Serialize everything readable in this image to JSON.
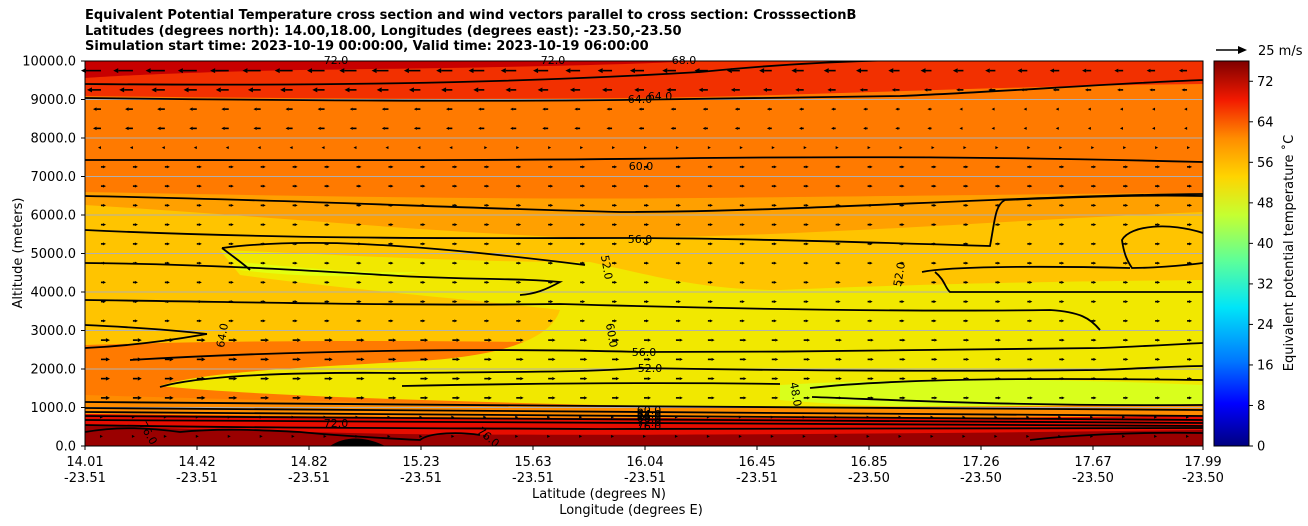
{
  "title_lines": [
    "Equivalent Potential Temperature cross section and wind vectors parallel to cross section: CrosssectionB",
    "Latitudes (degrees north): 14.00,18.00, Longitudes (degrees east): -23.50,-23.50",
    "Simulation start time: 2023-10-19 00:00:00, Valid time: 2023-10-19 06:00:00"
  ],
  "chart_data": {
    "type": "contour-cross-section",
    "ylabel": "Altitude (meters)",
    "xlabel_lat": "Latitude (degrees N)",
    "xlabel_lon": "Longitude (degrees E)",
    "ylim": [
      0,
      10000
    ],
    "yticks": [
      0,
      1000,
      2000,
      3000,
      4000,
      5000,
      6000,
      7000,
      8000,
      9000,
      10000
    ],
    "ytick_labels": [
      "0.0",
      "1000.0",
      "2000.0",
      "3000.0",
      "4000.0",
      "5000.0",
      "6000.0",
      "7000.0",
      "8000.0",
      "9000.0",
      "10000.0"
    ],
    "xlim": [
      14.01,
      17.99
    ],
    "xticks_lat": [
      "14.01",
      "14.42",
      "14.82",
      "15.23",
      "15.63",
      "16.04",
      "16.45",
      "16.85",
      "17.26",
      "17.67",
      "17.99"
    ],
    "xticks_lon": [
      "-23.51",
      "-23.51",
      "-23.51",
      "-23.51",
      "-23.51",
      "-23.51",
      "-23.51",
      "-23.50",
      "-23.50",
      "-23.50",
      "-23.50"
    ],
    "grid": "horizontal",
    "colorbar": {
      "label": "Equivalent potential temperature ˚C",
      "min": 0,
      "max": 76,
      "tick_values": [
        0,
        8,
        16,
        24,
        32,
        40,
        48,
        56,
        64,
        72
      ],
      "tick_labels": [
        "0",
        "8",
        "16",
        "24",
        "32",
        "40",
        "48",
        "56",
        "64",
        "72"
      ]
    },
    "quiver_key": "25 m/s",
    "contour_labels": [
      "72.0",
      "72.0",
      "68.0",
      "64.0",
      "64.0",
      "60.0",
      "56.0",
      "52.0",
      "52.0",
      "64.0",
      "60.0",
      "56.0",
      "52.0",
      "48.0",
      "76.0",
      "72.0",
      "76.0",
      "76.0",
      "60.0",
      "64.0",
      "68.0",
      "72.0",
      "76.0"
    ],
    "contour_levels": [
      48,
      52,
      56,
      60,
      64,
      68,
      72,
      76
    ]
  }
}
